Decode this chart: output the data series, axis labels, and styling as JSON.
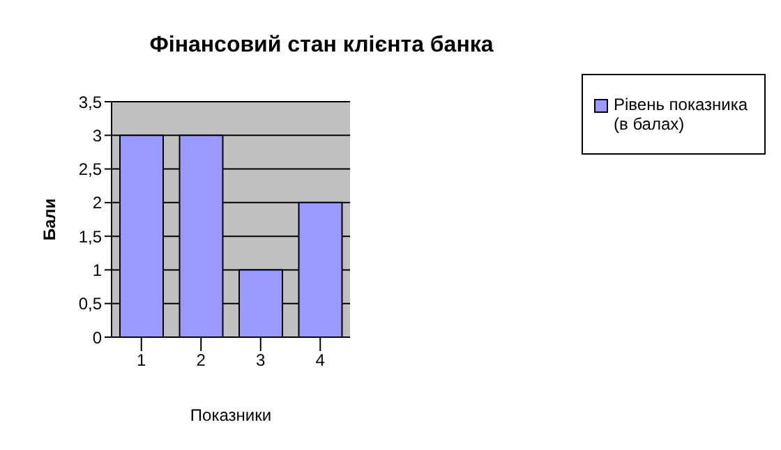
{
  "chart_data": {
    "type": "bar",
    "title": "Фінансовий стан клієнта банка",
    "xlabel": "Показники",
    "ylabel": "Бали",
    "categories": [
      "1",
      "2",
      "3",
      "4"
    ],
    "series": [
      {
        "name": "Рівень показника (в балах)",
        "color": "#9999ff",
        "values": [
          3,
          3,
          1,
          2
        ]
      }
    ],
    "ylim": [
      0,
      3.5
    ],
    "yticks": [
      0,
      {
        "value": 0.5,
        "label": "0,5"
      },
      1,
      {
        "value": 1.5,
        "label": "1,5"
      },
      2,
      {
        "value": 2.5,
        "label": "2,5"
      },
      3,
      {
        "value": 3.5,
        "label": "3,5"
      }
    ],
    "grid": "y",
    "legend": "right"
  }
}
